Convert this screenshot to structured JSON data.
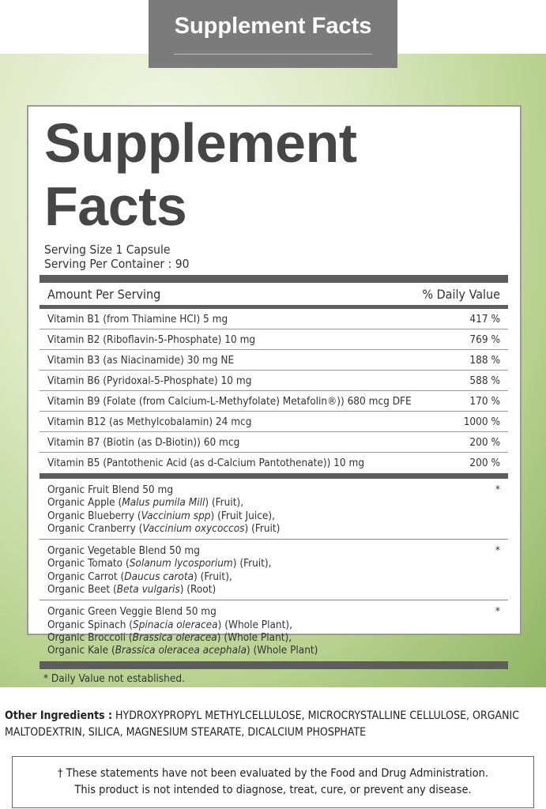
{
  "header": {
    "title": "Supplement Facts"
  },
  "panel": {
    "title": "Supplement Facts",
    "serving_size": "Serving Size  1 Capsule",
    "servings_per_container": "Serving Per Container : 90",
    "col_amount": "Amount Per Serving",
    "col_dv": "% Daily Value",
    "vitamins": [
      {
        "name": "Vitamin B1 (from Thiamine HCI)  5 mg",
        "dv": "417 %"
      },
      {
        "name": "Vitamin B2 (Riboflavin-5-Phosphate)  10 mg",
        "dv": "769 %"
      },
      {
        "name": "Vitamin B3 (as Niacinamide)  30 mg NE",
        "dv": "188 %"
      },
      {
        "name": "Vitamin B6 (Pyridoxal-5-Phosphate)  10 mg",
        "dv": "588 %"
      },
      {
        "name": "Vitamin B9 (Folate (from Calcium-L-Methyfolate) Metafolin®))  680 mcg DFE",
        "dv": "170 %"
      },
      {
        "name": "Vitamin B12 (as Methylcobalamin)  24 mcg",
        "dv": "1000 %"
      },
      {
        "name": "Vitamin B7 (Biotin (as D-Biotin))  60 mcg",
        "dv": "200 %"
      },
      {
        "name": "Vitamin B5 (Pantothenic Acid (as d-Calcium Pantothenate))  10 mg",
        "dv": "200 %"
      }
    ],
    "blends": [
      {
        "title": "Organic Fruit Blend    50 mg",
        "dv": "*",
        "lines": [
          {
            "pre": "Organic Apple (",
            "it": "Malus pumila Mill",
            "post": ") (Fruit),"
          },
          {
            "pre": "Organic Blueberry (",
            "it": "Vaccinium spp",
            "post": ") (Fruit Juice),"
          },
          {
            "pre": "Organic Cranberry (",
            "it": "Vaccinium oxycoccos",
            "post": ") (Fruit)"
          }
        ]
      },
      {
        "title": "Organic Vegetable Blend    50 mg",
        "dv": "*",
        "lines": [
          {
            "pre": "Organic Tomato (",
            "it": "Solanum lycosporium",
            "post": ") (Fruit),"
          },
          {
            "pre": "Organic Carrot (",
            "it": "Daucus carota",
            "post": ") (Fruit),"
          },
          {
            "pre": "Organic Beet (",
            "it": "Beta vulgaris",
            "post": ") (Root)"
          }
        ]
      },
      {
        "title": "Organic Green Veggie Blend    50 mg",
        "dv": "*",
        "lines": [
          {
            "pre": "Organic Spinach (",
            "it": "Spinacia oleracea",
            "post": ") (Whole Plant),"
          },
          {
            "pre": "Organic Broccoli (",
            "it": "Brassica oleracea",
            "post": ") (Whole Plant),"
          },
          {
            "pre": "Organic Kale (",
            "it": "Brassica oleracea acephala",
            "post": ") (Whole Plant)"
          }
        ]
      }
    ],
    "footnote": "* Daily Value not established."
  },
  "other_ingredients": {
    "label": "Other Ingredients :",
    "text": " HYDROXYPROPYL METHYLCELLULOSE, MICROCRYSTALLINE CELLULOSE, ORGANIC MALTODEXTRIN, SILICA, MAGNESIUM STEARATE, DICALCIUM PHOSPHATE"
  },
  "disclaimer": {
    "line1": "† These statements have not been evaluated by the Food and Drug Administration.",
    "line2": "This product is not intended to diagnose, treat, cure, or prevent any disease."
  },
  "colors": {
    "header_bg": "#7b7b7b",
    "bar": "#5d5d5d",
    "title": "#464646",
    "background": "#b9d291"
  }
}
